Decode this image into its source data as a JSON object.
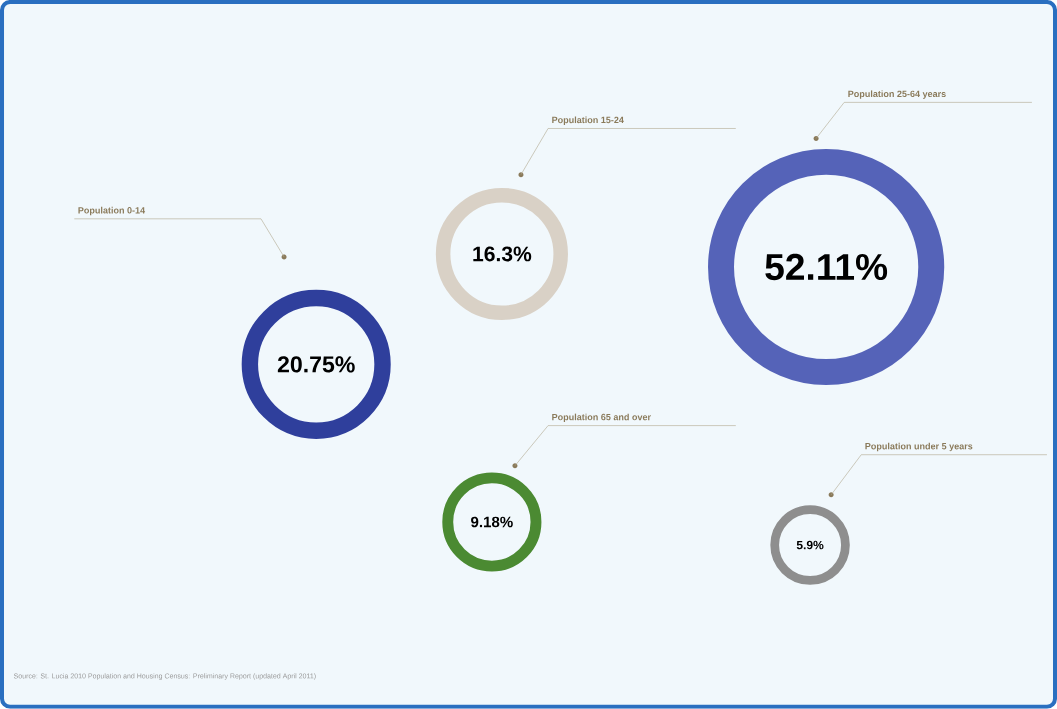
{
  "chart_data": {
    "type": "other",
    "categories": [
      "Population 0-14",
      "Population 15-24",
      "Population 25-64 years",
      "Population 65 and over",
      "Population under 5 years"
    ],
    "values": [
      20.75,
      16.3,
      52.11,
      9.18,
      5.9
    ],
    "value_labels": [
      "20.75%",
      "16.3%",
      "52.11%",
      "9.18%",
      "5.9%"
    ],
    "colors": [
      "#2f3f9c",
      "#d9d1c6",
      "#5563b8",
      "#4b8a32",
      "#8e8e8e"
    ],
    "annotations": [
      "Source: St. Lucia 2010 Population and Housing Census: Preliminary Report (updated April 2011)"
    ]
  }
}
